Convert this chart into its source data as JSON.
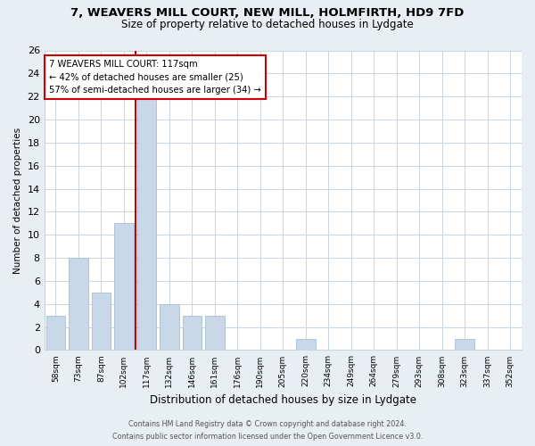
{
  "title_line1": "7, WEAVERS MILL COURT, NEW MILL, HOLMFIRTH, HD9 7FD",
  "title_line2": "Size of property relative to detached houses in Lydgate",
  "xlabel": "Distribution of detached houses by size in Lydgate",
  "ylabel": "Number of detached properties",
  "bin_labels": [
    "58sqm",
    "73sqm",
    "87sqm",
    "102sqm",
    "117sqm",
    "132sqm",
    "146sqm",
    "161sqm",
    "176sqm",
    "190sqm",
    "205sqm",
    "220sqm",
    "234sqm",
    "249sqm",
    "264sqm",
    "279sqm",
    "293sqm",
    "308sqm",
    "323sqm",
    "337sqm",
    "352sqm"
  ],
  "bar_heights": [
    3,
    8,
    5,
    11,
    22,
    4,
    3,
    3,
    0,
    0,
    0,
    1,
    0,
    0,
    0,
    0,
    0,
    0,
    1,
    0,
    0
  ],
  "highlight_index": 4,
  "bar_color": "#c8d8e8",
  "bar_edgecolor": "#a8c0d4",
  "ref_line_color": "#cc0000",
  "annotation_text": "7 WEAVERS MILL COURT: 117sqm\n← 42% of detached houses are smaller (25)\n57% of semi-detached houses are larger (34) →",
  "annotation_box_color": "white",
  "annotation_box_edgecolor": "#cc0000",
  "ylim": [
    0,
    26
  ],
  "yticks": [
    0,
    2,
    4,
    6,
    8,
    10,
    12,
    14,
    16,
    18,
    20,
    22,
    24,
    26
  ],
  "footer_line1": "Contains HM Land Registry data © Crown copyright and database right 2024.",
  "footer_line2": "Contains public sector information licensed under the Open Government Licence v3.0.",
  "background_color": "#e8eef4",
  "plot_background": "#ffffff",
  "grid_color": "#c8d4de"
}
